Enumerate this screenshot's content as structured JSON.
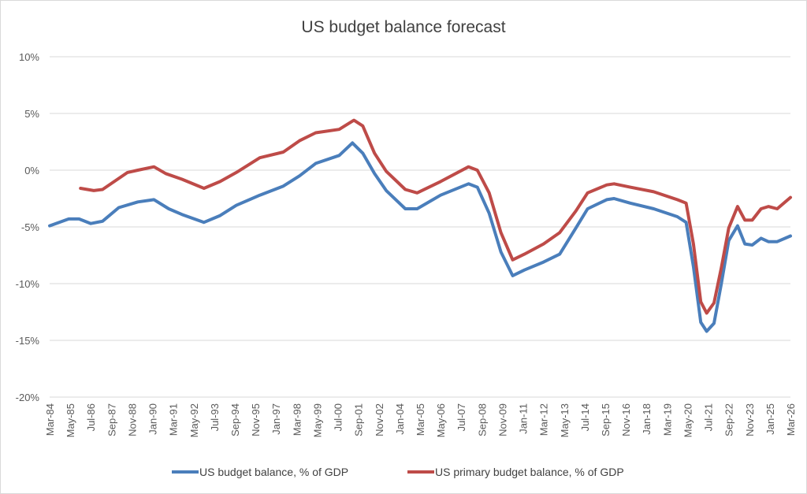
{
  "chart_data": {
    "type": "line",
    "title": "US budget balance forecast",
    "xlabel": "",
    "ylabel": "",
    "ylim": [
      -20,
      10
    ],
    "yticks": [
      "10%",
      "5%",
      "0%",
      "-5%",
      "-10%",
      "-15%",
      "-20%"
    ],
    "ytick_values": [
      10,
      5,
      0,
      -5,
      -10,
      -15,
      -20
    ],
    "xlim": [
      "1984-03",
      "2026-03"
    ],
    "xtick_labels": [
      "Mar-84",
      "May-85",
      "Jul-86",
      "Sep-87",
      "Nov-88",
      "Jan-90",
      "Mar-91",
      "May-92",
      "Jul-93",
      "Sep-94",
      "Nov-95",
      "Jan-97",
      "Mar-98",
      "May-99",
      "Jul-00",
      "Sep-01",
      "Nov-02",
      "Jan-04",
      "Mar-05",
      "May-06",
      "Jul-07",
      "Sep-08",
      "Nov-09",
      "Jan-11",
      "Mar-12",
      "May-13",
      "Jul-14",
      "Sep-15",
      "Nov-16",
      "Jan-18",
      "Mar-19",
      "May-20",
      "Jul-21",
      "Sep-22",
      "Nov-23",
      "Jan-25",
      "Mar-26"
    ],
    "grid": "horizontal",
    "legend_position": "bottom",
    "series": [
      {
        "name": "US budget balance, % of GDP",
        "color": "#4a7ebb",
        "points": [
          [
            "1984-03",
            -4.9
          ],
          [
            "1985-04",
            -4.3
          ],
          [
            "1985-11",
            -4.3
          ],
          [
            "1986-07",
            -4.7
          ],
          [
            "1987-03",
            -4.5
          ],
          [
            "1988-02",
            -3.3
          ],
          [
            "1989-03",
            -2.8
          ],
          [
            "1990-02",
            -2.6
          ],
          [
            "1990-12",
            -3.4
          ],
          [
            "1991-09",
            -3.9
          ],
          [
            "1992-12",
            -4.6
          ],
          [
            "1993-11",
            -4.0
          ],
          [
            "1994-10",
            -3.1
          ],
          [
            "1996-02",
            -2.2
          ],
          [
            "1997-06",
            -1.4
          ],
          [
            "1998-05",
            -0.5
          ],
          [
            "1999-04",
            0.6
          ],
          [
            "2000-08",
            1.3
          ],
          [
            "2001-05",
            2.4
          ],
          [
            "2001-12",
            1.5
          ],
          [
            "2002-08",
            -0.3
          ],
          [
            "2003-04",
            -1.8
          ],
          [
            "2004-05",
            -3.4
          ],
          [
            "2005-01",
            -3.4
          ],
          [
            "2006-05",
            -2.2
          ],
          [
            "2007-12",
            -1.2
          ],
          [
            "2008-06",
            -1.5
          ],
          [
            "2009-02",
            -3.8
          ],
          [
            "2009-10",
            -7.2
          ],
          [
            "2010-06",
            -9.3
          ],
          [
            "2011-02",
            -8.8
          ],
          [
            "2012-03",
            -8.1
          ],
          [
            "2013-02",
            -7.4
          ],
          [
            "2014-01",
            -5.1
          ],
          [
            "2014-09",
            -3.4
          ],
          [
            "2015-10",
            -2.6
          ],
          [
            "2016-03",
            -2.5
          ],
          [
            "2017-02",
            -2.9
          ],
          [
            "2018-06",
            -3.4
          ],
          [
            "2019-10",
            -4.1
          ],
          [
            "2020-04",
            -4.6
          ],
          [
            "2020-09",
            -8.5
          ],
          [
            "2021-02",
            -13.4
          ],
          [
            "2021-06",
            -14.2
          ],
          [
            "2021-11",
            -13.5
          ],
          [
            "2022-04",
            -10.0
          ],
          [
            "2022-09",
            -6.2
          ],
          [
            "2023-03",
            -4.9
          ],
          [
            "2023-08",
            -6.5
          ],
          [
            "2024-01",
            -6.6
          ],
          [
            "2024-07",
            -6.0
          ],
          [
            "2024-12",
            -6.3
          ],
          [
            "2025-06",
            -6.3
          ],
          [
            "2026-03",
            -5.8
          ]
        ]
      },
      {
        "name": "US primary budget balance, % of GDP",
        "color": "#be4b48",
        "points": [
          [
            "1985-12",
            -1.6
          ],
          [
            "1986-09",
            -1.8
          ],
          [
            "1987-03",
            -1.7
          ],
          [
            "1988-08",
            -0.2
          ],
          [
            "1989-03",
            0.0
          ],
          [
            "1990-02",
            0.3
          ],
          [
            "1990-10",
            -0.3
          ],
          [
            "1991-09",
            -0.8
          ],
          [
            "1992-12",
            -1.6
          ],
          [
            "1993-11",
            -1.0
          ],
          [
            "1994-10",
            -0.2
          ],
          [
            "1996-02",
            1.1
          ],
          [
            "1997-06",
            1.6
          ],
          [
            "1998-05",
            2.6
          ],
          [
            "1999-04",
            3.3
          ],
          [
            "2000-08",
            3.6
          ],
          [
            "2001-06",
            4.4
          ],
          [
            "2001-12",
            3.9
          ],
          [
            "2002-08",
            1.5
          ],
          [
            "2003-04",
            -0.1
          ],
          [
            "2004-05",
            -1.7
          ],
          [
            "2005-01",
            -2.0
          ],
          [
            "2006-05",
            -1.0
          ],
          [
            "2007-12",
            0.3
          ],
          [
            "2008-06",
            0.0
          ],
          [
            "2009-02",
            -2.0
          ],
          [
            "2009-10",
            -5.5
          ],
          [
            "2010-06",
            -7.9
          ],
          [
            "2011-02",
            -7.4
          ],
          [
            "2012-03",
            -6.5
          ],
          [
            "2013-02",
            -5.5
          ],
          [
            "2014-01",
            -3.6
          ],
          [
            "2014-09",
            -2.0
          ],
          [
            "2015-10",
            -1.3
          ],
          [
            "2016-03",
            -1.2
          ],
          [
            "2017-02",
            -1.5
          ],
          [
            "2018-06",
            -1.9
          ],
          [
            "2019-10",
            -2.6
          ],
          [
            "2020-04",
            -2.9
          ],
          [
            "2020-09",
            -6.5
          ],
          [
            "2021-02",
            -11.6
          ],
          [
            "2021-06",
            -12.6
          ],
          [
            "2021-11",
            -11.7
          ],
          [
            "2022-04",
            -8.6
          ],
          [
            "2022-09",
            -5.1
          ],
          [
            "2023-03",
            -3.2
          ],
          [
            "2023-08",
            -4.4
          ],
          [
            "2024-01",
            -4.4
          ],
          [
            "2024-07",
            -3.4
          ],
          [
            "2024-12",
            -3.2
          ],
          [
            "2025-06",
            -3.4
          ],
          [
            "2026-03",
            -2.4
          ]
        ]
      }
    ]
  }
}
